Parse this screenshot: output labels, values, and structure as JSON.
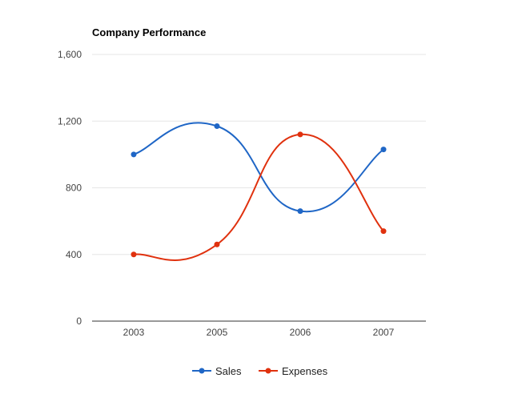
{
  "chart_data": {
    "type": "line",
    "title": "Company Performance",
    "categories": [
      "2003",
      "2005",
      "2006",
      "2007"
    ],
    "series": [
      {
        "name": "Sales",
        "values": [
          1000,
          1170,
          660,
          1030
        ],
        "color": "#1f66c6"
      },
      {
        "name": "Expenses",
        "values": [
          400,
          460,
          1120,
          540
        ],
        "color": "#e0310e"
      }
    ],
    "ylim": [
      0,
      1600
    ],
    "yticks": [
      0,
      400,
      800,
      1200,
      1600
    ],
    "ytick_labels": [
      "0",
      "400",
      "800",
      "1,200",
      "1,600"
    ],
    "curve": "smooth",
    "legend": "bottom",
    "grid": true,
    "xlabel": "",
    "ylabel": ""
  }
}
